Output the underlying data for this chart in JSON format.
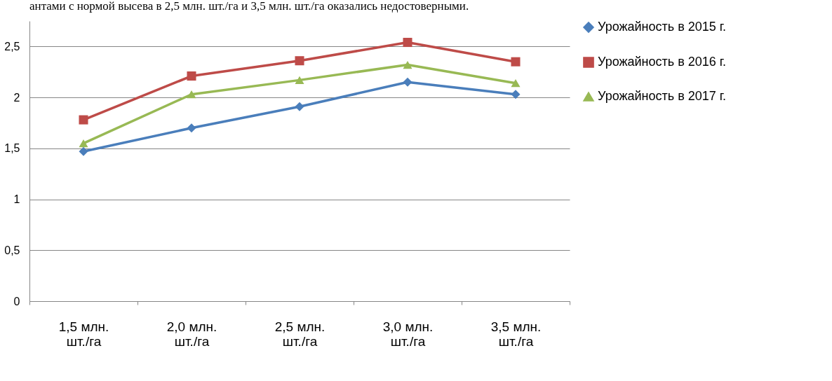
{
  "chart_data": {
    "type": "line",
    "annotations": [
      "антами с нормой высева в 2,5 млн. шт./га и 3,5 млн. шт./га оказались недостоверными."
    ],
    "categories": [
      "1,5 млн. шт./га",
      "2,0 млн. шт./га",
      "2,5 млн. шт./га",
      "3,0 млн. шт./га",
      "3,5 млн. шт./га"
    ],
    "series": [
      {
        "name": "Урожайность в 2015 г.",
        "color": "#4a7ebb",
        "marker": "diamond",
        "values": [
          1.47,
          1.7,
          1.91,
          2.15,
          2.03
        ]
      },
      {
        "name": "Урожайность в 2016 г.",
        "color": "#be4b48",
        "marker": "square",
        "values": [
          1.78,
          2.21,
          2.36,
          2.54,
          2.35
        ]
      },
      {
        "name": "Урожайность в 2017 г.",
        "color": "#98b954",
        "marker": "triangle",
        "values": [
          1.55,
          2.03,
          2.17,
          2.32,
          2.14
        ]
      }
    ],
    "ylim": [
      0,
      2.75
    ],
    "yticks": [
      0,
      {
        "value": 0.5,
        "label": "0,5"
      },
      1,
      {
        "value": 1.5,
        "label": "1,5"
      },
      2,
      {
        "value": 2.5,
        "label": "2,5"
      }
    ],
    "grid": "y",
    "legend": "right"
  }
}
